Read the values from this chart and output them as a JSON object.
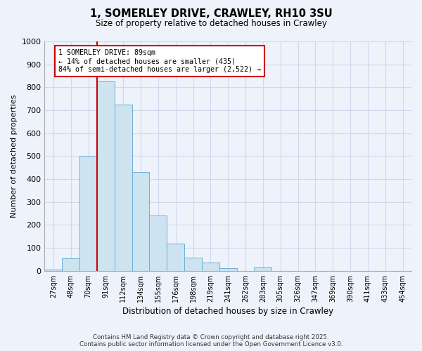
{
  "title": "1, SOMERLEY DRIVE, CRAWLEY, RH10 3SU",
  "subtitle": "Size of property relative to detached houses in Crawley",
  "xlabel": "Distribution of detached houses by size in Crawley",
  "ylabel": "Number of detached properties",
  "bin_labels": [
    "27sqm",
    "48sqm",
    "70sqm",
    "91sqm",
    "112sqm",
    "134sqm",
    "155sqm",
    "176sqm",
    "198sqm",
    "219sqm",
    "241sqm",
    "262sqm",
    "283sqm",
    "305sqm",
    "326sqm",
    "347sqm",
    "369sqm",
    "390sqm",
    "411sqm",
    "433sqm",
    "454sqm"
  ],
  "bar_values": [
    5,
    55,
    500,
    825,
    725,
    430,
    240,
    120,
    58,
    35,
    12,
    0,
    15,
    0,
    0,
    0,
    0,
    0,
    0,
    0,
    0
  ],
  "bar_color": "#cde4f0",
  "bar_edge_color": "#6aafd4",
  "property_line_label": "1 SOMERLEY DRIVE: 89sqm",
  "annotation_line1": "← 14% of detached houses are smaller (435)",
  "annotation_line2": "84% of semi-detached houses are larger (2,522) →",
  "annotation_box_color": "#ffffff",
  "annotation_box_edge": "#cc0000",
  "vline_color": "#cc0000",
  "ylim": [
    0,
    1000
  ],
  "yticks": [
    0,
    100,
    200,
    300,
    400,
    500,
    600,
    700,
    800,
    900,
    1000
  ],
  "footer_line1": "Contains HM Land Registry data © Crown copyright and database right 2025.",
  "footer_line2": "Contains public sector information licensed under the Open Government Licence v3.0.",
  "background_color": "#eef2fb",
  "grid_color": "#d0d8ee"
}
